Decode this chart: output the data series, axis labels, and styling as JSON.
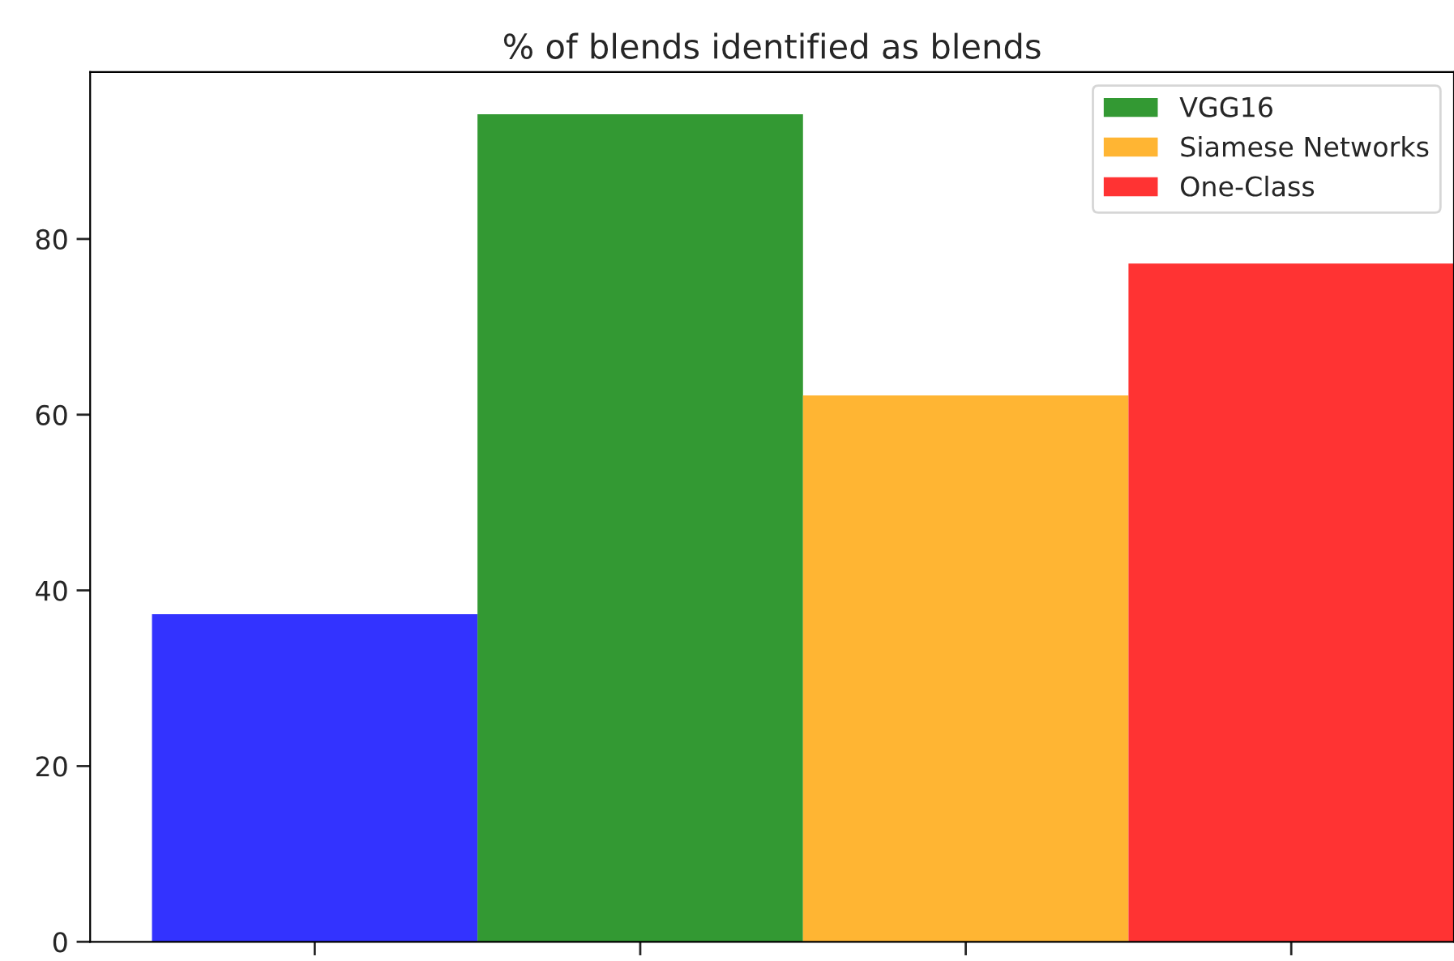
{
  "chart_data": {
    "type": "bar",
    "title": "% of blends identified as blends",
    "categories": [
      null,
      null,
      null,
      null
    ],
    "stacked": true,
    "series": [
      {
        "color": "#3333ff",
        "values": [
          37.3,
          null,
          null,
          null
        ]
      },
      {
        "name": "VGG16",
        "color": "#339933",
        "values": [
          null,
          94.2,
          null,
          null
        ]
      },
      {
        "name": "Siamese Networks",
        "color": "#ffb533",
        "values": [
          null,
          null,
          62.2,
          null
        ]
      },
      {
        "name": "One-Class",
        "color": "#ff3333",
        "values": [
          null,
          null,
          null,
          77.2
        ]
      }
    ],
    "ylim": [
      0,
      99
    ],
    "yticks": [
      0,
      20,
      40,
      60,
      80
    ],
    "tick_labels": "y",
    "grid": false,
    "legend": "top right"
  }
}
